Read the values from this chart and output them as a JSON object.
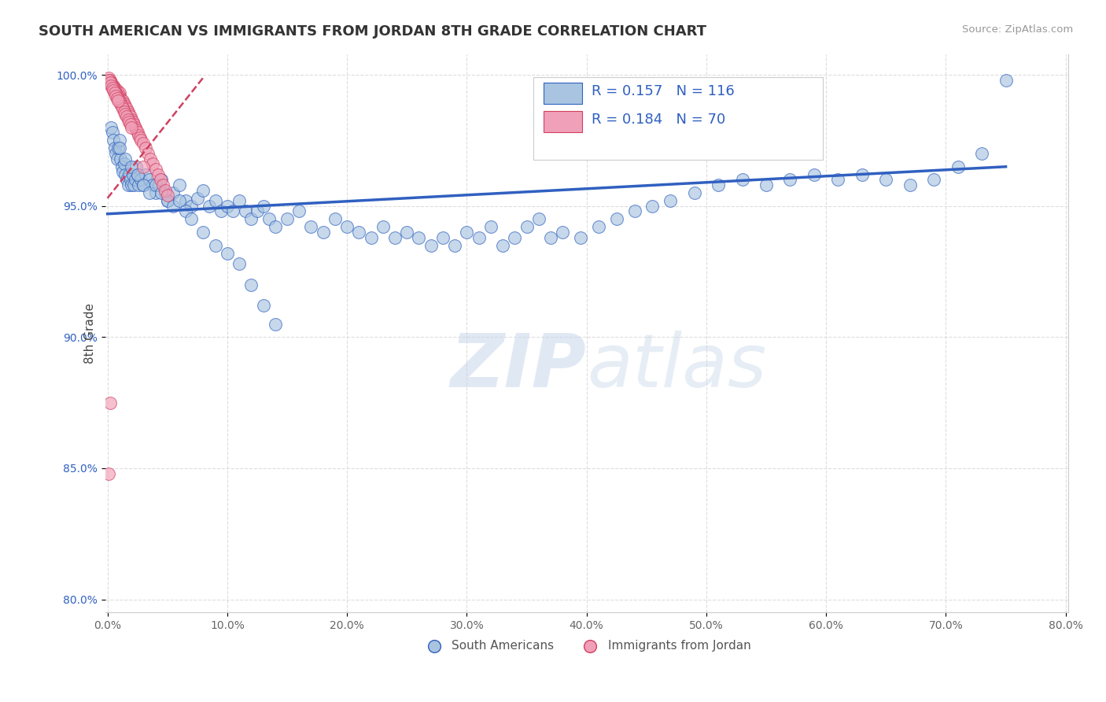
{
  "title": "SOUTH AMERICAN VS IMMIGRANTS FROM JORDAN 8TH GRADE CORRELATION CHART",
  "source": "Source: ZipAtlas.com",
  "ylabel": "8th Grade",
  "watermark_zip": "ZIP",
  "watermark_atlas": "atlas",
  "legend_blue_label": "South Americans",
  "legend_pink_label": "Immigrants from Jordan",
  "R_blue": 0.157,
  "N_blue": 116,
  "R_pink": 0.184,
  "N_pink": 70,
  "xlim": [
    -0.002,
    0.802
  ],
  "ylim": [
    0.795,
    1.008
  ],
  "xticks": [
    0.0,
    0.1,
    0.2,
    0.3,
    0.4,
    0.5,
    0.6,
    0.7,
    0.8
  ],
  "xticklabels": [
    "0.0%",
    "10.0%",
    "20.0%",
    "30.0%",
    "40.0%",
    "50.0%",
    "60.0%",
    "70.0%",
    "80.0%"
  ],
  "yticks": [
    0.8,
    0.85,
    0.9,
    0.95,
    1.0
  ],
  "yticklabels": [
    "80.0%",
    "85.0%",
    "90.0%",
    "95.0%",
    "100.0%"
  ],
  "blue_color": "#a8c4e0",
  "pink_color": "#f0a0b8",
  "trend_blue": "#3060c0",
  "trend_pink": "#d04060",
  "background": "#ffffff",
  "blue_trend_x": [
    0.0,
    0.75
  ],
  "blue_trend_y": [
    0.947,
    0.965
  ],
  "pink_trend_x": [
    0.0,
    0.08
  ],
  "pink_trend_y": [
    0.953,
    0.999
  ],
  "blue_scatter_x": [
    0.003,
    0.004,
    0.005,
    0.006,
    0.007,
    0.008,
    0.009,
    0.01,
    0.011,
    0.012,
    0.013,
    0.014,
    0.015,
    0.016,
    0.017,
    0.018,
    0.019,
    0.02,
    0.021,
    0.022,
    0.023,
    0.024,
    0.025,
    0.026,
    0.028,
    0.03,
    0.032,
    0.035,
    0.038,
    0.04,
    0.043,
    0.045,
    0.048,
    0.05,
    0.055,
    0.06,
    0.065,
    0.07,
    0.075,
    0.08,
    0.085,
    0.09,
    0.095,
    0.1,
    0.105,
    0.11,
    0.115,
    0.12,
    0.125,
    0.13,
    0.135,
    0.14,
    0.15,
    0.16,
    0.17,
    0.18,
    0.19,
    0.2,
    0.21,
    0.22,
    0.23,
    0.24,
    0.25,
    0.26,
    0.27,
    0.28,
    0.29,
    0.3,
    0.31,
    0.32,
    0.33,
    0.34,
    0.35,
    0.36,
    0.37,
    0.38,
    0.395,
    0.41,
    0.425,
    0.44,
    0.455,
    0.47,
    0.49,
    0.51,
    0.53,
    0.55,
    0.57,
    0.59,
    0.61,
    0.63,
    0.65,
    0.67,
    0.69,
    0.71,
    0.73,
    0.01,
    0.015,
    0.02,
    0.025,
    0.03,
    0.035,
    0.04,
    0.045,
    0.05,
    0.055,
    0.06,
    0.065,
    0.07,
    0.08,
    0.09,
    0.1,
    0.11,
    0.12,
    0.13,
    0.14,
    0.75
  ],
  "blue_scatter_y": [
    0.98,
    0.978,
    0.975,
    0.972,
    0.97,
    0.968,
    0.972,
    0.975,
    0.968,
    0.965,
    0.963,
    0.966,
    0.962,
    0.96,
    0.958,
    0.962,
    0.96,
    0.958,
    0.962,
    0.958,
    0.96,
    0.965,
    0.962,
    0.958,
    0.96,
    0.958,
    0.962,
    0.96,
    0.958,
    0.955,
    0.958,
    0.96,
    0.955,
    0.952,
    0.955,
    0.958,
    0.952,
    0.95,
    0.953,
    0.956,
    0.95,
    0.952,
    0.948,
    0.95,
    0.948,
    0.952,
    0.948,
    0.945,
    0.948,
    0.95,
    0.945,
    0.942,
    0.945,
    0.948,
    0.942,
    0.94,
    0.945,
    0.942,
    0.94,
    0.938,
    0.942,
    0.938,
    0.94,
    0.938,
    0.935,
    0.938,
    0.935,
    0.94,
    0.938,
    0.942,
    0.935,
    0.938,
    0.942,
    0.945,
    0.938,
    0.94,
    0.938,
    0.942,
    0.945,
    0.948,
    0.95,
    0.952,
    0.955,
    0.958,
    0.96,
    0.958,
    0.96,
    0.962,
    0.96,
    0.962,
    0.96,
    0.958,
    0.96,
    0.965,
    0.97,
    0.972,
    0.968,
    0.965,
    0.962,
    0.958,
    0.955,
    0.958,
    0.955,
    0.952,
    0.95,
    0.952,
    0.948,
    0.945,
    0.94,
    0.935,
    0.932,
    0.928,
    0.92,
    0.912,
    0.905,
    0.998
  ],
  "pink_scatter_x": [
    0.001,
    0.002,
    0.003,
    0.004,
    0.005,
    0.006,
    0.007,
    0.008,
    0.009,
    0.01,
    0.01,
    0.011,
    0.012,
    0.013,
    0.014,
    0.015,
    0.016,
    0.017,
    0.018,
    0.019,
    0.02,
    0.021,
    0.022,
    0.023,
    0.024,
    0.025,
    0.026,
    0.027,
    0.028,
    0.03,
    0.032,
    0.034,
    0.036,
    0.038,
    0.04,
    0.042,
    0.044,
    0.046,
    0.048,
    0.05,
    0.003,
    0.004,
    0.005,
    0.006,
    0.007,
    0.008,
    0.009,
    0.01,
    0.011,
    0.012,
    0.013,
    0.014,
    0.015,
    0.016,
    0.017,
    0.018,
    0.019,
    0.02,
    0.001,
    0.002,
    0.003,
    0.004,
    0.005,
    0.006,
    0.007,
    0.008,
    0.009,
    0.03,
    0.002,
    0.001
  ],
  "pink_scatter_y": [
    0.999,
    0.998,
    0.997,
    0.996,
    0.996,
    0.995,
    0.994,
    0.994,
    0.993,
    0.993,
    0.992,
    0.991,
    0.99,
    0.99,
    0.989,
    0.988,
    0.987,
    0.986,
    0.985,
    0.984,
    0.983,
    0.982,
    0.981,
    0.98,
    0.979,
    0.978,
    0.977,
    0.976,
    0.975,
    0.974,
    0.972,
    0.97,
    0.968,
    0.966,
    0.964,
    0.962,
    0.96,
    0.958,
    0.956,
    0.954,
    0.997,
    0.996,
    0.995,
    0.994,
    0.993,
    0.992,
    0.991,
    0.99,
    0.989,
    0.988,
    0.987,
    0.986,
    0.985,
    0.984,
    0.983,
    0.982,
    0.981,
    0.98,
    0.998,
    0.997,
    0.996,
    0.995,
    0.994,
    0.993,
    0.992,
    0.991,
    0.99,
    0.965,
    0.875,
    0.848
  ]
}
